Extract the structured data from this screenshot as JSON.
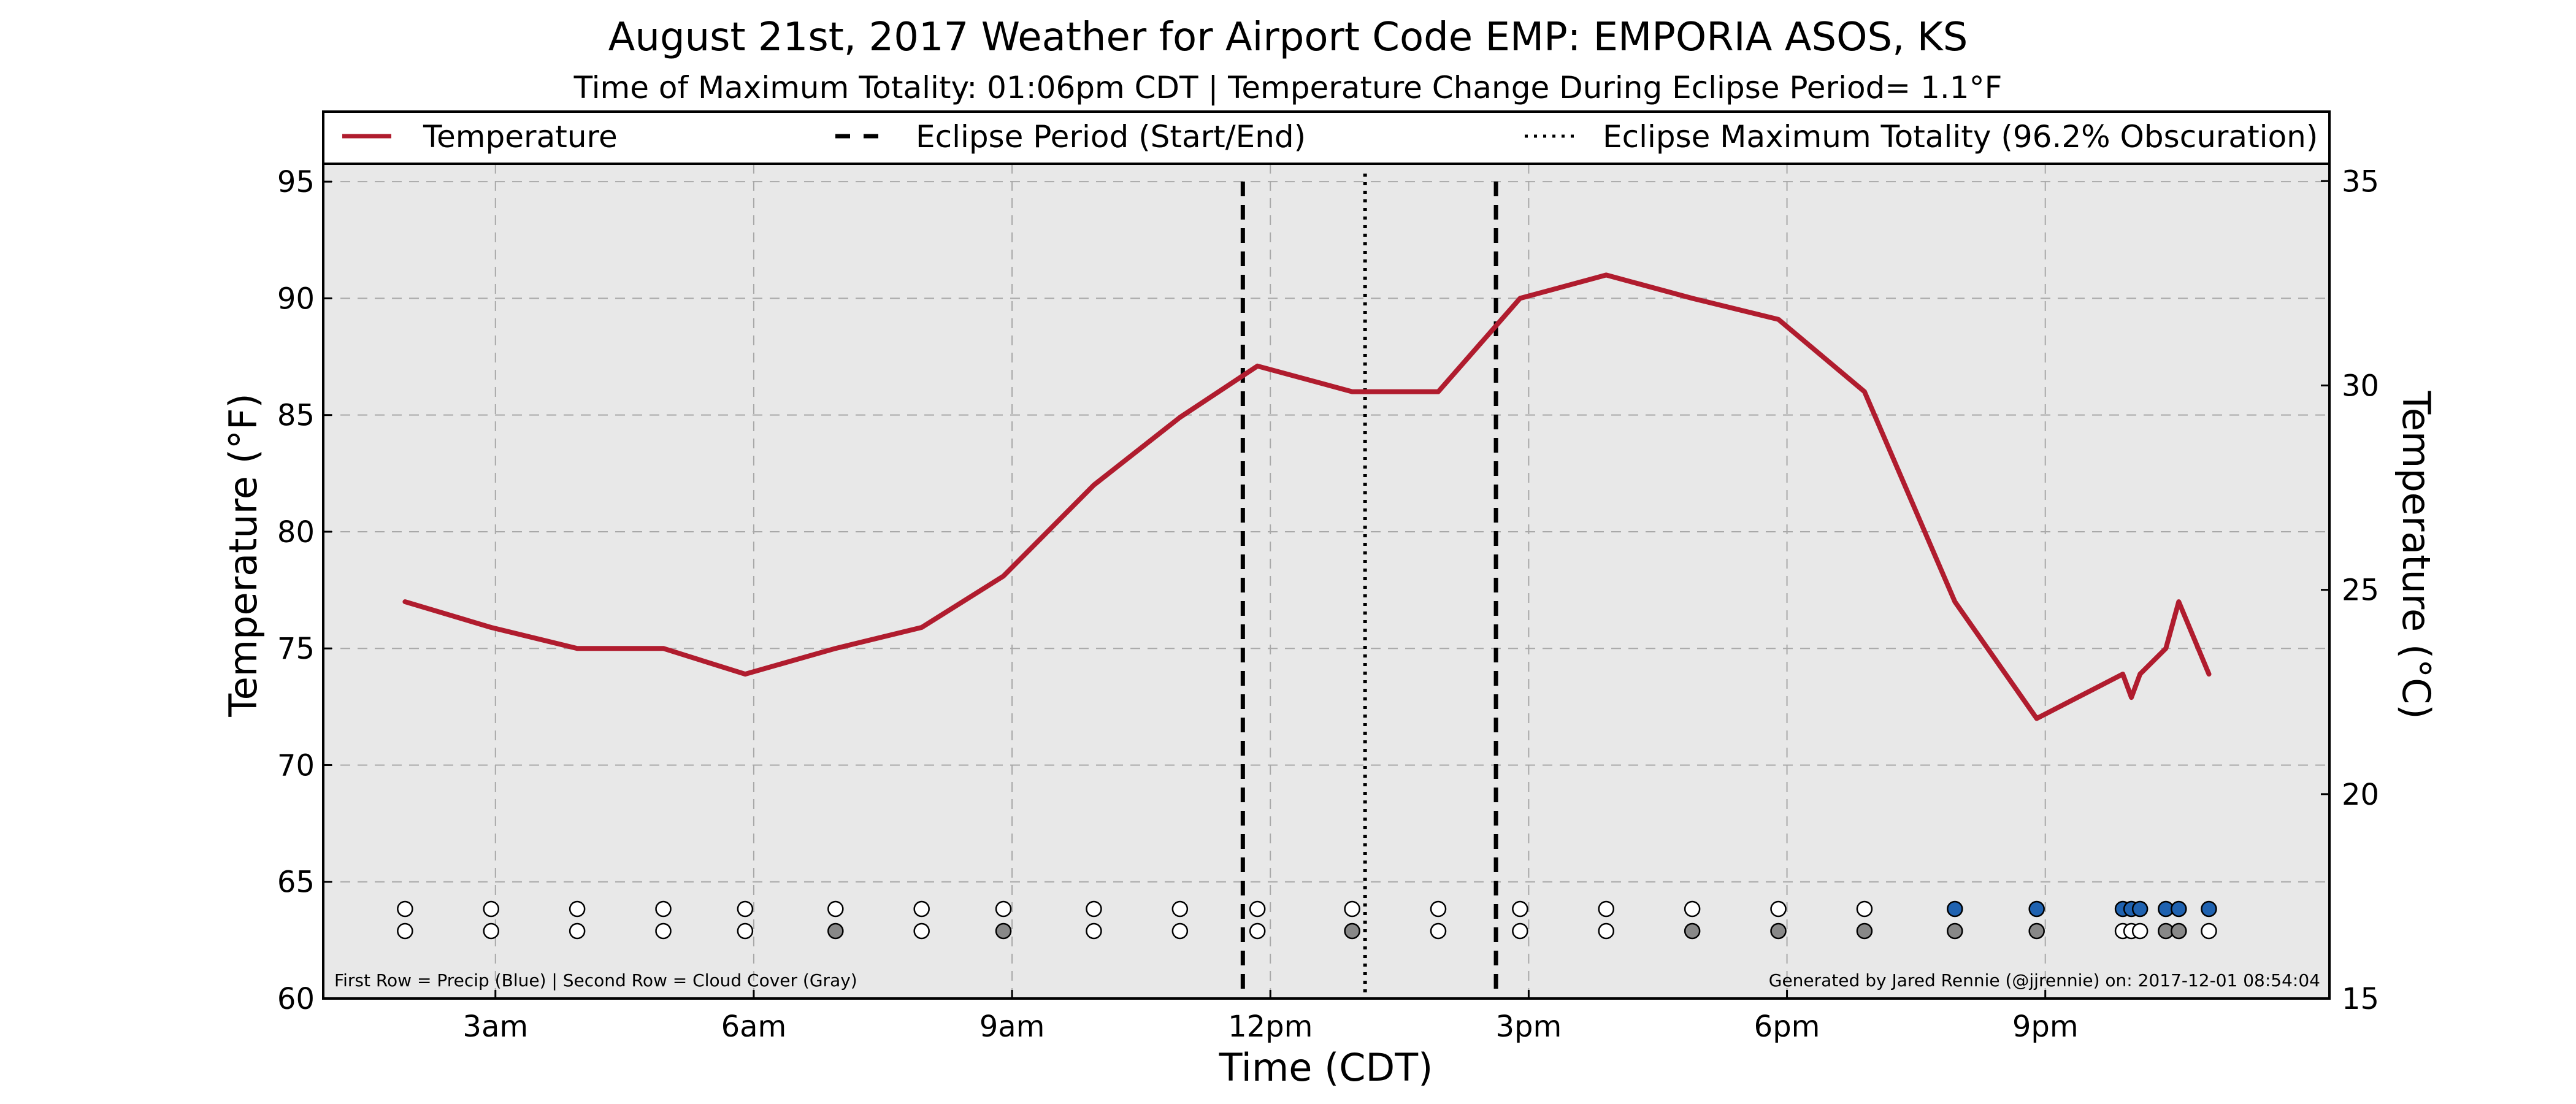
{
  "chart_data": {
    "type": "line",
    "title": "August 21st, 2017 Weather for Airport Code EMP: EMPORIA ASOS, KS",
    "subtitle": "Time of Maximum Totality: 01:06pm CDT | Temperature Change During Eclipse Period= 1.1°F",
    "xlabel": "Time (CDT)",
    "ylabel": "Temperature (°F)",
    "ylabel_right": "Temperature (°C)",
    "x_unit": "hour_of_day_CDT",
    "xlim": [
      1.0,
      24.3
    ],
    "ylim": [
      60,
      98
    ],
    "ylim_right_c": [
      15,
      36.7
    ],
    "xticks": [
      {
        "value": 3,
        "label": "3am"
      },
      {
        "value": 6,
        "label": "6am"
      },
      {
        "value": 9,
        "label": "9am"
      },
      {
        "value": 12,
        "label": "12pm"
      },
      {
        "value": 15,
        "label": "3pm"
      },
      {
        "value": 18,
        "label": "6pm"
      },
      {
        "value": 21,
        "label": "9pm"
      }
    ],
    "yticks": [
      60,
      65,
      70,
      75,
      80,
      85,
      90,
      95
    ],
    "yticks_right": [
      15,
      20,
      25,
      30,
      35
    ],
    "grid": true,
    "background": "#e8e8e8",
    "legend_position": "top",
    "legend": [
      {
        "label": "Temperature",
        "style": "solid",
        "color": "#b01c2e"
      },
      {
        "label": "Eclipse Period (Start/End)",
        "style": "dashed",
        "color": "#000000"
      },
      {
        "label": "Eclipse Maximum Totality (96.2% Obscuration)",
        "style": "dotted",
        "color": "#000000"
      }
    ],
    "series": [
      {
        "name": "Temperature",
        "color": "#b01c2e",
        "x": [
          1.95,
          2.95,
          3.95,
          4.95,
          5.9,
          6.95,
          7.95,
          8.9,
          9.95,
          10.95,
          11.85,
          12.95,
          13.95,
          14.9,
          15.9,
          16.9,
          17.9,
          18.9,
          19.95,
          20.9,
          21.9,
          22.0,
          22.1,
          22.4,
          22.55,
          22.9
        ],
        "y": [
          77,
          75.9,
          75,
          75,
          73.9,
          75,
          75.9,
          78.1,
          82,
          84.9,
          87.1,
          86,
          86,
          90,
          91,
          90,
          89.1,
          86,
          77,
          72,
          73.9,
          72.9,
          73.9,
          75,
          77,
          73.9
        ]
      }
    ],
    "eclipse_start": 11.68,
    "eclipse_end": 14.62,
    "max_totality": 13.1,
    "obs_rows": {
      "precip_row": [
        {
          "x": 1.95,
          "color": "#ffffff"
        },
        {
          "x": 2.95,
          "color": "#ffffff"
        },
        {
          "x": 3.95,
          "color": "#ffffff"
        },
        {
          "x": 4.95,
          "color": "#ffffff"
        },
        {
          "x": 5.9,
          "color": "#ffffff"
        },
        {
          "x": 6.95,
          "color": "#ffffff"
        },
        {
          "x": 7.95,
          "color": "#ffffff"
        },
        {
          "x": 8.9,
          "color": "#ffffff"
        },
        {
          "x": 9.95,
          "color": "#ffffff"
        },
        {
          "x": 10.95,
          "color": "#ffffff"
        },
        {
          "x": 11.85,
          "color": "#ffffff"
        },
        {
          "x": 12.95,
          "color": "#ffffff"
        },
        {
          "x": 13.95,
          "color": "#ffffff"
        },
        {
          "x": 14.9,
          "color": "#ffffff"
        },
        {
          "x": 15.9,
          "color": "#ffffff"
        },
        {
          "x": 16.9,
          "color": "#ffffff"
        },
        {
          "x": 17.9,
          "color": "#ffffff"
        },
        {
          "x": 18.9,
          "color": "#ffffff"
        },
        {
          "x": 19.95,
          "color": "#1f62b0"
        },
        {
          "x": 20.9,
          "color": "#1f62b0"
        },
        {
          "x": 21.9,
          "color": "#1f62b0"
        },
        {
          "x": 22.0,
          "color": "#1f62b0"
        },
        {
          "x": 22.1,
          "color": "#1f62b0"
        },
        {
          "x": 22.4,
          "color": "#1f62b0"
        },
        {
          "x": 22.55,
          "color": "#1f62b0"
        },
        {
          "x": 22.9,
          "color": "#1f62b0"
        }
      ],
      "cloud_row": [
        {
          "x": 1.95,
          "color": "#ffffff"
        },
        {
          "x": 2.95,
          "color": "#ffffff"
        },
        {
          "x": 3.95,
          "color": "#ffffff"
        },
        {
          "x": 4.95,
          "color": "#ffffff"
        },
        {
          "x": 5.9,
          "color": "#ffffff"
        },
        {
          "x": 6.95,
          "color": "#888888"
        },
        {
          "x": 7.95,
          "color": "#ffffff"
        },
        {
          "x": 8.9,
          "color": "#888888"
        },
        {
          "x": 9.95,
          "color": "#ffffff"
        },
        {
          "x": 10.95,
          "color": "#ffffff"
        },
        {
          "x": 11.85,
          "color": "#ffffff"
        },
        {
          "x": 12.95,
          "color": "#888888"
        },
        {
          "x": 13.95,
          "color": "#ffffff"
        },
        {
          "x": 14.9,
          "color": "#ffffff"
        },
        {
          "x": 15.9,
          "color": "#ffffff"
        },
        {
          "x": 16.9,
          "color": "#888888"
        },
        {
          "x": 17.9,
          "color": "#888888"
        },
        {
          "x": 18.9,
          "color": "#888888"
        },
        {
          "x": 19.95,
          "color": "#888888"
        },
        {
          "x": 20.9,
          "color": "#888888"
        },
        {
          "x": 21.9,
          "color": "#ffffff"
        },
        {
          "x": 22.0,
          "color": "#ffffff"
        },
        {
          "x": 22.1,
          "color": "#ffffff"
        },
        {
          "x": 22.4,
          "color": "#888888"
        },
        {
          "x": 22.55,
          "color": "#888888"
        },
        {
          "x": 22.9,
          "color": "#ffffff"
        }
      ]
    },
    "footnote_left": "First Row = Precip (Blue) | Second Row = Cloud Cover (Gray)",
    "footnote_right": "Generated by Jared Rennie (@jjrennie) on: 2017-12-01 08:54:04"
  }
}
